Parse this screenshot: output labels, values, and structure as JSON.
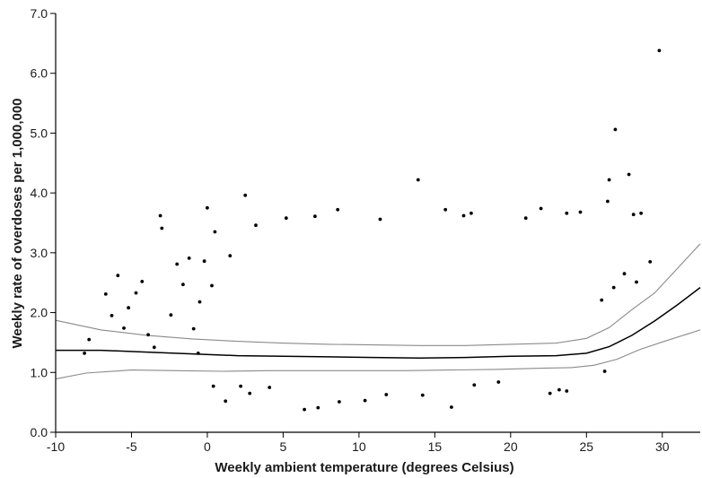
{
  "chart_data": {
    "type": "scatter",
    "title": "",
    "xlabel": "Weekly ambient temperature (degrees Celsius)",
    "ylabel": "Weekly rate of overdoses per 1,000,000",
    "xlim": [
      -10,
      32.5
    ],
    "ylim": [
      0,
      7
    ],
    "x_ticks": [
      -10,
      -5,
      0,
      5,
      10,
      15,
      20,
      25,
      30
    ],
    "x_tick_labels": [
      "-10",
      "-5",
      "0",
      "5",
      "10",
      "15",
      "20",
      "25",
      "30"
    ],
    "y_ticks": [
      0,
      1,
      2,
      3,
      4,
      5,
      6,
      7
    ],
    "y_tick_labels": [
      "0.0",
      "1.0",
      "2.0",
      "3.0",
      "4.0",
      "5.0",
      "6.0",
      "7.0"
    ],
    "grid": false,
    "legend": "none",
    "colors": {
      "points": "#000000",
      "fit": "#000000",
      "ci": "#8a8a8a",
      "axis": "#000000"
    },
    "series": [
      {
        "kind": "points",
        "points": [
          [
            -8.1,
            1.32
          ],
          [
            -7.8,
            1.55
          ],
          [
            -6.7,
            2.31
          ],
          [
            -6.3,
            1.95
          ],
          [
            -5.9,
            2.62
          ],
          [
            -5.5,
            1.74
          ],
          [
            -5.2,
            2.08
          ],
          [
            -4.7,
            2.33
          ],
          [
            -4.3,
            2.52
          ],
          [
            -3.9,
            1.63
          ],
          [
            -3.5,
            1.42
          ],
          [
            -3.1,
            3.62
          ],
          [
            -3.0,
            3.41
          ],
          [
            -2.4,
            1.96
          ],
          [
            -2.0,
            2.81
          ],
          [
            -1.6,
            2.47
          ],
          [
            -1.2,
            2.91
          ],
          [
            -0.9,
            1.73
          ],
          [
            -0.5,
            2.18
          ],
          [
            -0.2,
            2.86
          ],
          [
            0.0,
            3.75
          ],
          [
            0.3,
            2.45
          ],
          [
            0.5,
            3.35
          ],
          [
            1.5,
            2.95
          ],
          [
            2.5,
            3.96
          ],
          [
            3.2,
            3.46
          ],
          [
            5.2,
            3.58
          ],
          [
            7.1,
            3.61
          ],
          [
            8.6,
            3.72
          ],
          [
            11.4,
            3.56
          ],
          [
            13.9,
            4.22
          ],
          [
            15.7,
            3.72
          ],
          [
            16.9,
            3.62
          ],
          [
            17.4,
            3.66
          ],
          [
            21.0,
            3.58
          ],
          [
            22.0,
            3.74
          ],
          [
            23.7,
            3.66
          ],
          [
            24.6,
            3.68
          ],
          [
            26.4,
            3.86
          ],
          [
            26.5,
            4.22
          ],
          [
            26.9,
            5.06
          ],
          [
            27.8,
            4.31
          ],
          [
            28.1,
            3.64
          ],
          [
            28.6,
            3.66
          ],
          [
            29.8,
            6.38
          ],
          [
            29.2,
            2.85
          ],
          [
            28.3,
            2.51
          ],
          [
            27.5,
            2.65
          ],
          [
            26.8,
            2.42
          ],
          [
            26.0,
            2.21
          ],
          [
            26.2,
            1.02
          ],
          [
            -0.6,
            1.32
          ],
          [
            0.4,
            0.77
          ],
          [
            1.2,
            0.52
          ],
          [
            2.2,
            0.77
          ],
          [
            2.8,
            0.65
          ],
          [
            4.1,
            0.75
          ],
          [
            6.4,
            0.38
          ],
          [
            7.3,
            0.41
          ],
          [
            8.7,
            0.51
          ],
          [
            10.4,
            0.53
          ],
          [
            11.8,
            0.63
          ],
          [
            14.2,
            0.62
          ],
          [
            16.1,
            0.42
          ],
          [
            17.6,
            0.79
          ],
          [
            19.2,
            0.84
          ],
          [
            22.6,
            0.65
          ],
          [
            23.2,
            0.71
          ],
          [
            23.7,
            0.69
          ]
        ]
      },
      {
        "kind": "fit",
        "points": [
          [
            -10,
            1.37
          ],
          [
            -7,
            1.37
          ],
          [
            -4,
            1.34
          ],
          [
            -1,
            1.31
          ],
          [
            2,
            1.28
          ],
          [
            5,
            1.27
          ],
          [
            8,
            1.26
          ],
          [
            11,
            1.25
          ],
          [
            14,
            1.24
          ],
          [
            17,
            1.25
          ],
          [
            20,
            1.27
          ],
          [
            23,
            1.28
          ],
          [
            25,
            1.32
          ],
          [
            26.5,
            1.43
          ],
          [
            28,
            1.62
          ],
          [
            29.5,
            1.86
          ],
          [
            31,
            2.13
          ],
          [
            32.5,
            2.42
          ]
        ]
      },
      {
        "kind": "ci-upper",
        "points": [
          [
            -10,
            1.87
          ],
          [
            -7,
            1.71
          ],
          [
            -4,
            1.62
          ],
          [
            -1,
            1.56
          ],
          [
            2,
            1.52
          ],
          [
            5,
            1.49
          ],
          [
            8,
            1.47
          ],
          [
            11,
            1.46
          ],
          [
            14,
            1.45
          ],
          [
            17,
            1.45
          ],
          [
            20,
            1.47
          ],
          [
            23,
            1.49
          ],
          [
            25,
            1.57
          ],
          [
            26.5,
            1.75
          ],
          [
            28,
            2.05
          ],
          [
            29.5,
            2.33
          ],
          [
            31,
            2.74
          ],
          [
            32.5,
            3.15
          ]
        ]
      },
      {
        "kind": "ci-lower",
        "points": [
          [
            -10,
            0.89
          ],
          [
            -8,
            0.99
          ],
          [
            -5,
            1.04
          ],
          [
            -2,
            1.03
          ],
          [
            1,
            1.02
          ],
          [
            4,
            1.03
          ],
          [
            7,
            1.03
          ],
          [
            10,
            1.03
          ],
          [
            13,
            1.03
          ],
          [
            16,
            1.04
          ],
          [
            19,
            1.05
          ],
          [
            22,
            1.07
          ],
          [
            24,
            1.08
          ],
          [
            25.5,
            1.12
          ],
          [
            27,
            1.22
          ],
          [
            28.5,
            1.38
          ],
          [
            30,
            1.51
          ],
          [
            31.5,
            1.63
          ],
          [
            32.5,
            1.71
          ]
        ]
      }
    ]
  }
}
